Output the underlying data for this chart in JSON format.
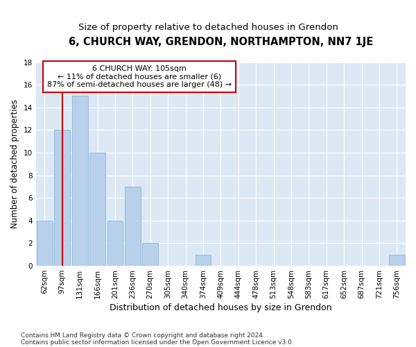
{
  "title1": "6, CHURCH WAY, GRENDON, NORTHAMPTON, NN7 1JE",
  "title2": "Size of property relative to detached houses in Grendon",
  "xlabel": "Distribution of detached houses by size in Grendon",
  "ylabel": "Number of detached properties",
  "categories": [
    "62sqm",
    "97sqm",
    "131sqm",
    "166sqm",
    "201sqm",
    "236sqm",
    "270sqm",
    "305sqm",
    "340sqm",
    "374sqm",
    "409sqm",
    "444sqm",
    "478sqm",
    "513sqm",
    "548sqm",
    "583sqm",
    "617sqm",
    "652sqm",
    "687sqm",
    "721sqm",
    "756sqm"
  ],
  "values": [
    4,
    12,
    15,
    10,
    4,
    7,
    2,
    0,
    0,
    1,
    0,
    0,
    0,
    0,
    0,
    0,
    0,
    0,
    0,
    0,
    1
  ],
  "bar_color": "#b8d0ea",
  "bar_edge_color": "#8ab4d9",
  "vline_x_index": 1,
  "vline_color": "#cc0000",
  "annotation_text_line1": "6 CHURCH WAY: 105sqm",
  "annotation_text_line2": "← 11% of detached houses are smaller (6)",
  "annotation_text_line3": "87% of semi-detached houses are larger (48) →",
  "annotation_box_color": "#ffffff",
  "annotation_border_color": "#cc0000",
  "ylim": [
    0,
    18
  ],
  "yticks": [
    0,
    2,
    4,
    6,
    8,
    10,
    12,
    14,
    16,
    18
  ],
  "footnote1": "Contains HM Land Registry data © Crown copyright and database right 2024.",
  "footnote2": "Contains public sector information licensed under the Open Government Licence v3.0.",
  "background_color": "#dce9f5",
  "fig_background": "#ffffff",
  "title1_fontsize": 10.5,
  "title2_fontsize": 9.5,
  "annotation_fontsize": 8,
  "footnote_fontsize": 6.5,
  "tick_fontsize": 7.5,
  "ylabel_fontsize": 8.5,
  "xlabel_fontsize": 9
}
